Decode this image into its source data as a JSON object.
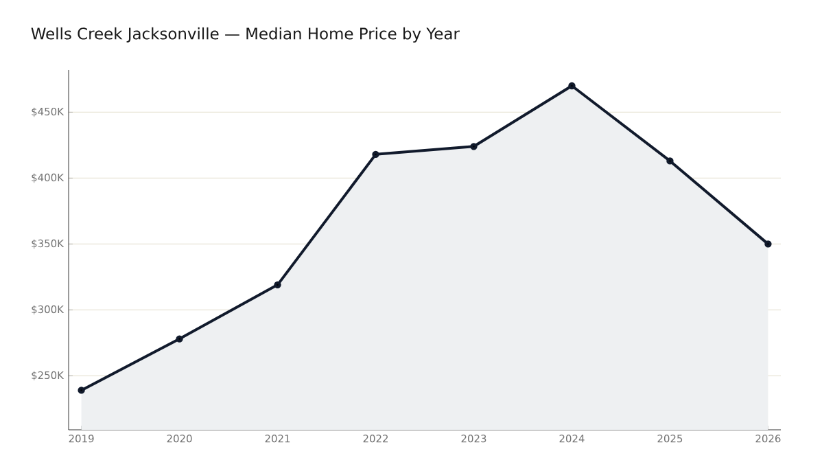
{
  "chart_data": {
    "type": "area",
    "title": "Wells Creek Jacksonville — Median Home Price by Year",
    "x": [
      2019,
      2020,
      2021,
      2022,
      2023,
      2024,
      2025,
      2026
    ],
    "series": [
      {
        "color": "#111a2c",
        "values": [
          239000,
          278000,
          319000,
          418000,
          424000,
          470000,
          413000,
          350000
        ]
      }
    ],
    "xlim": [
      2018.87,
      2026.13
    ],
    "ylim": [
      209000,
      482000
    ],
    "xticks": [
      2019,
      2020,
      2021,
      2022,
      2023,
      2024,
      2025,
      2026
    ],
    "yticks": [
      {
        "value": 250000,
        "label": "$250K"
      },
      {
        "value": 300000,
        "label": "$300K"
      },
      {
        "value": 350000,
        "label": "$350K"
      },
      {
        "value": 400000,
        "label": "$400K"
      },
      {
        "value": 450000,
        "label": "$450K"
      }
    ],
    "grid": "y",
    "marker": "circle",
    "line_style": "solid"
  }
}
